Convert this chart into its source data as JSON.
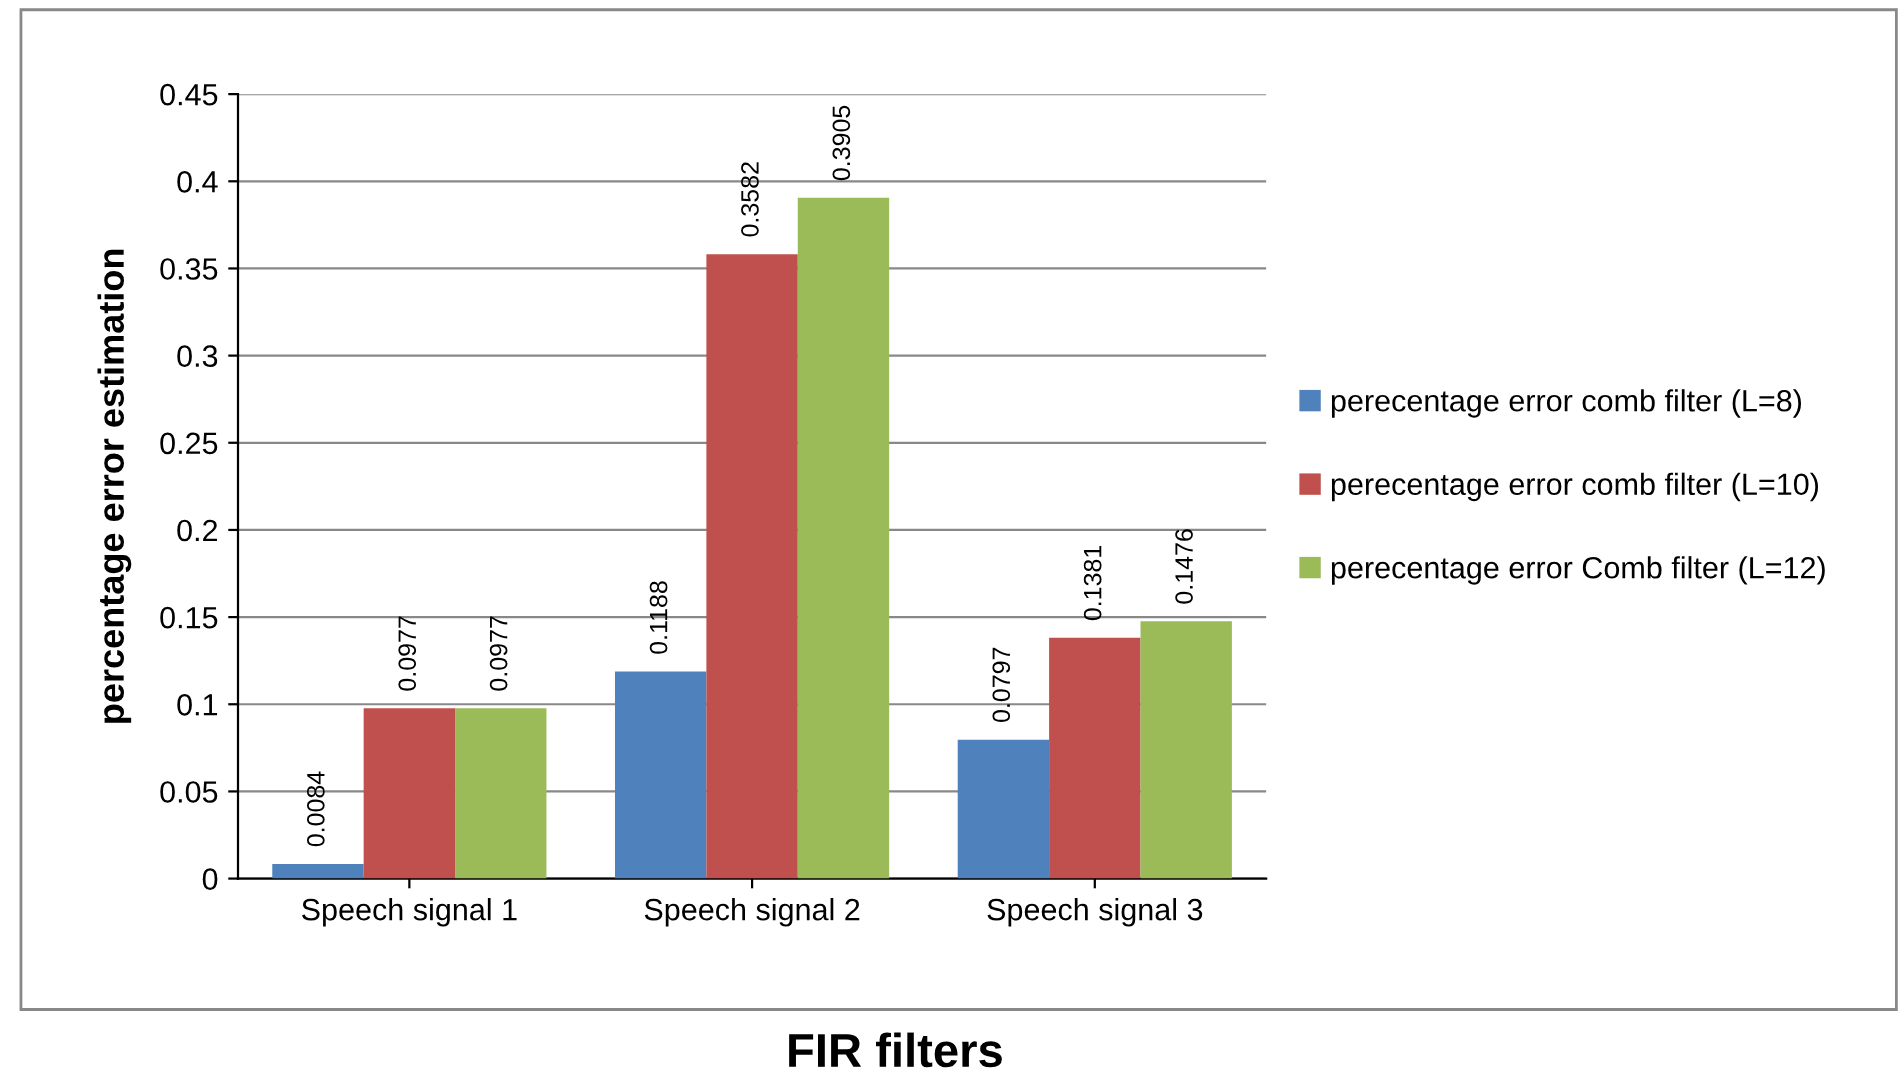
{
  "chart_data": {
    "type": "bar",
    "xlabel": "FIR filters",
    "ylabel": "percentage error estimation",
    "categories": [
      "Speech signal 1",
      "Speech signal 2",
      "Speech signal 3"
    ],
    "series": [
      {
        "name": "perecentage error comb filter (L=8)",
        "color": "#4f81bd",
        "values": [
          0.0084,
          0.1188,
          0.0797
        ]
      },
      {
        "name": "perecentage error comb filter (L=10)",
        "color": "#c0504d",
        "values": [
          0.0977,
          0.3582,
          0.1381
        ]
      },
      {
        "name": "perecentage error Comb filter (L=12)",
        "color": "#9bbb59",
        "values": [
          0.0977,
          0.3905,
          0.1476
        ]
      }
    ],
    "ylim": [
      0,
      0.45
    ],
    "yticks": [
      0,
      0.05,
      0.1,
      0.15,
      0.2,
      0.25,
      0.3,
      0.35,
      0.4,
      0.45
    ],
    "grid": "y",
    "legend": "right",
    "data_labels": true
  }
}
